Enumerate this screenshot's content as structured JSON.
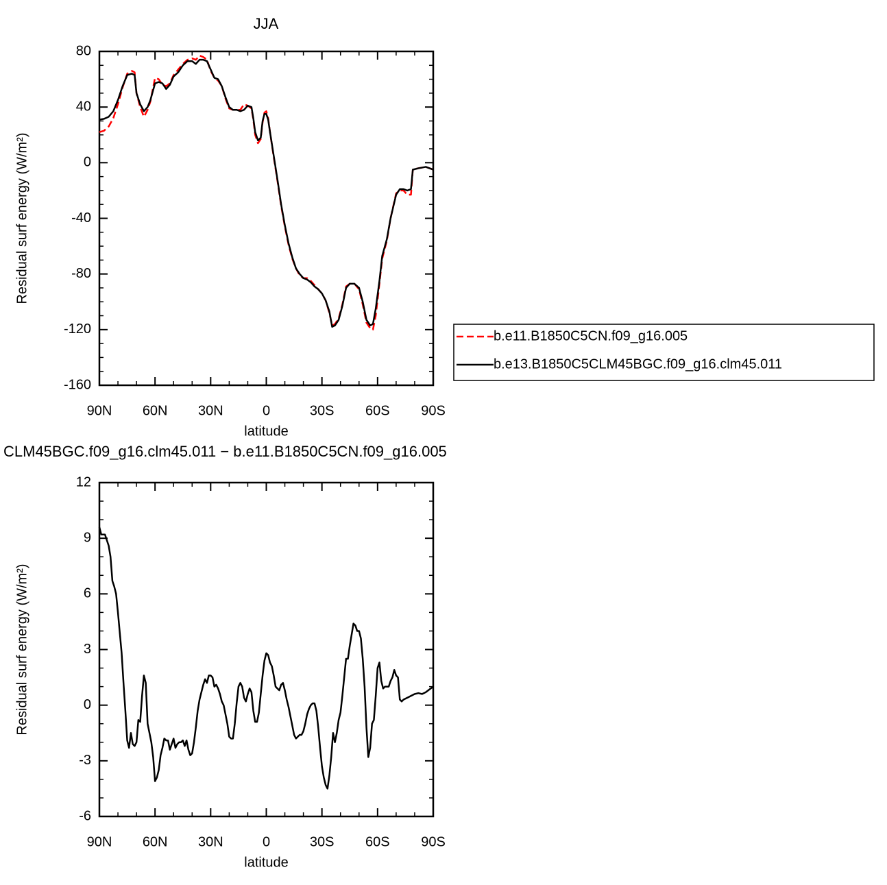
{
  "chart_data": [
    {
      "type": "line",
      "title": "JJA",
      "x_label": "latitude",
      "y_label": "Residual surf energy (W/m²)",
      "x": [
        90,
        87.5,
        85,
        82.5,
        80,
        77.5,
        75,
        72.5,
        71,
        70,
        68,
        66,
        64,
        62.5,
        60,
        58,
        56,
        54,
        52,
        50,
        47.5,
        45,
        42.5,
        40,
        38,
        36,
        34,
        32,
        30,
        28,
        26,
        24,
        22,
        20,
        18,
        16,
        14,
        12,
        10,
        8,
        7,
        6,
        4.5,
        3,
        2,
        1,
        0,
        -1,
        -2,
        -4,
        -6,
        -8,
        -10,
        -12,
        -14,
        -16,
        -18,
        -20,
        -22,
        -24,
        -26,
        -28,
        -30,
        -32,
        -34,
        -35.5,
        -37,
        -39,
        -41,
        -43,
        -45,
        -47.5,
        -50,
        -52,
        -54,
        -56,
        -57.5,
        -59,
        -61,
        -62.5,
        -65,
        -67,
        -70,
        -72,
        -74,
        -76,
        -78,
        -79,
        -82,
        -86,
        -90
      ],
      "series": [
        {
          "name": "b.e11.B1850C5CN.f09_g16.005",
          "color": "#ff0000",
          "dashed": true,
          "values": [
            22,
            23,
            26,
            32,
            42,
            54,
            64,
            66,
            65,
            50,
            40,
            33,
            38,
            44,
            61,
            60,
            56,
            55,
            57,
            63,
            67,
            71,
            74,
            75,
            74,
            77,
            76,
            74,
            66,
            61,
            59,
            55,
            46,
            39,
            38,
            38,
            38,
            42,
            41,
            39,
            31,
            20,
            14,
            17,
            29,
            36,
            37,
            32,
            22,
            4,
            -13,
            -31,
            -46,
            -59,
            -69,
            -76,
            -81,
            -83,
            -83,
            -85,
            -88,
            -91,
            -94,
            -99,
            -108,
            -117,
            -116,
            -112,
            -102,
            -89,
            -87,
            -87,
            -91,
            -102,
            -115,
            -119,
            -120,
            -110,
            -87,
            -69,
            -56,
            -40,
            -22,
            -20,
            -20,
            -23,
            -23,
            -5,
            -4,
            -3,
            -5
          ]
        },
        {
          "name": "b.e13.B1850C5CLM45BGC.f09_g16.clm45.011",
          "color": "#000000",
          "dashed": false,
          "values": [
            31,
            31.5,
            33,
            37,
            45,
            55,
            63,
            64,
            63,
            50,
            42,
            37,
            40,
            45,
            57,
            58,
            57,
            53,
            56,
            62,
            65,
            70,
            73,
            73,
            71,
            74,
            74,
            73,
            67,
            61,
            60,
            55,
            47,
            40,
            38,
            38,
            37,
            38,
            41,
            40,
            32,
            22,
            16,
            18,
            30,
            35,
            35,
            31,
            22,
            5,
            -12,
            -30,
            -45,
            -58,
            -68,
            -76,
            -80,
            -83,
            -84,
            -86,
            -89,
            -91,
            -94,
            -99,
            -107,
            -118,
            -117,
            -113,
            -103,
            -90,
            -87,
            -87,
            -90,
            -100,
            -113,
            -117,
            -116,
            -105,
            -85,
            -67,
            -55,
            -40,
            -23,
            -19,
            -19,
            -20,
            -19,
            -5,
            -4,
            -3,
            -5
          ]
        }
      ],
      "xlim": [
        90,
        -90
      ],
      "xticks": [
        {
          "value": 90,
          "label": "90N"
        },
        {
          "value": 60,
          "label": "60N"
        },
        {
          "value": 30,
          "label": "30N"
        },
        0,
        {
          "value": -30,
          "label": "30S"
        },
        {
          "value": -60,
          "label": "60S"
        },
        {
          "value": -90,
          "label": "90S"
        }
      ],
      "ylim": [
        -160,
        80
      ],
      "yticks": [
        80,
        40,
        0,
        -40,
        -80,
        -120,
        -160
      ],
      "grid": false,
      "legend": "right"
    },
    {
      "type": "line",
      "title": "CLM45BGC.f09_g16.clm45.011 − b.e11.B1850C5CN.f09_g16.005",
      "x_label": "latitude",
      "y_label": "Residual surf energy (W/m²)",
      "x": [
        90,
        89,
        87,
        85,
        84,
        83,
        82,
        81,
        80,
        79,
        78,
        77,
        76,
        75,
        74,
        73,
        72,
        71,
        70,
        69,
        68,
        67,
        66,
        65,
        64,
        63,
        62,
        61,
        60,
        59,
        58,
        57,
        56,
        55,
        54,
        53,
        52,
        51,
        50,
        49,
        48,
        47,
        46,
        45,
        44,
        43,
        42,
        41,
        40,
        39,
        38,
        37,
        36,
        35,
        34,
        33,
        32,
        31,
        30,
        29,
        28,
        27,
        26,
        25,
        24,
        23,
        22,
        21,
        20,
        19,
        18,
        17,
        16,
        15,
        14,
        13,
        12,
        11,
        10,
        9,
        8,
        7,
        6,
        5,
        4,
        3,
        2,
        1,
        0,
        -1,
        -2,
        -3,
        -4,
        -5,
        -6,
        -7,
        -8,
        -9,
        -10,
        -11,
        -12,
        -13,
        -14,
        -15,
        -16,
        -17,
        -18,
        -19,
        -20,
        -21,
        -22,
        -23,
        -24,
        -25,
        -26,
        -27,
        -28,
        -29,
        -30,
        -31,
        -32,
        -33,
        -34,
        -35,
        -36,
        -37,
        -38,
        -39,
        -40,
        -41,
        -42,
        -43,
        -44,
        -45,
        -46,
        -47,
        -48,
        -49,
        -50,
        -51,
        -52,
        -53,
        -54,
        -55,
        -56,
        -57,
        -58,
        -59,
        -60,
        -61,
        -62,
        -63,
        -64,
        -65,
        -66,
        -67,
        -68,
        -69,
        -70,
        -71,
        -72,
        -73,
        -74,
        -76,
        -78,
        -80,
        -82,
        -84,
        -86,
        -88,
        -90
      ],
      "series": [
        {
          "name": null,
          "color": "#000000",
          "dashed": false,
          "values": [
            9.6,
            9.2,
            9.2,
            8.6,
            8.0,
            6.7,
            6.4,
            6.0,
            5.0,
            3.9,
            2.8,
            1.2,
            -0.3,
            -1.9,
            -2.3,
            -1.5,
            -2.1,
            -2.2,
            -2.0,
            -0.8,
            -0.9,
            0.5,
            1.6,
            1.2,
            -1.0,
            -1.5,
            -2.0,
            -2.8,
            -4.1,
            -3.9,
            -3.5,
            -2.7,
            -2.3,
            -1.8,
            -1.9,
            -1.9,
            -2.4,
            -2.1,
            -1.8,
            -2.3,
            -2.1,
            -2.0,
            -2.0,
            -1.9,
            -2.2,
            -1.9,
            -2.4,
            -2.7,
            -2.6,
            -2.0,
            -1.2,
            -0.3,
            0.3,
            0.7,
            1.1,
            1.4,
            1.2,
            1.6,
            1.6,
            1.5,
            1.0,
            1.1,
            0.9,
            0.6,
            0.2,
            0.0,
            -0.5,
            -1.0,
            -1.7,
            -1.8,
            -1.8,
            -1.0,
            0.1,
            1.0,
            1.2,
            1.0,
            0.4,
            0.2,
            0.6,
            0.9,
            0.7,
            -0.3,
            -0.9,
            -0.9,
            -0.4,
            0.6,
            1.6,
            2.4,
            2.8,
            2.7,
            2.3,
            2.1,
            1.6,
            1.0,
            0.9,
            0.8,
            1.1,
            1.2,
            0.8,
            0.3,
            -0.1,
            -0.6,
            -1.1,
            -1.6,
            -1.8,
            -1.7,
            -1.6,
            -1.6,
            -1.4,
            -1.0,
            -0.5,
            -0.2,
            0.0,
            0.1,
            0.1,
            -0.3,
            -1.2,
            -2.3,
            -3.3,
            -3.9,
            -4.3,
            -4.5,
            -3.8,
            -2.8,
            -1.5,
            -2.0,
            -1.5,
            -0.8,
            -0.4,
            0.5,
            1.5,
            2.5,
            2.5,
            3.2,
            3.8,
            4.4,
            4.3,
            4.0,
            4.0,
            3.6,
            2.5,
            1.0,
            -1.2,
            -2.8,
            -2.3,
            -1.0,
            -0.8,
            0.5,
            2.0,
            2.3,
            1.3,
            0.9,
            1.0,
            1.0,
            1.0,
            1.3,
            1.5,
            1.9,
            1.6,
            1.5,
            0.3,
            0.2,
            0.3,
            0.4,
            0.5,
            0.6,
            0.65,
            0.6,
            0.7,
            0.85,
            1.0
          ]
        }
      ],
      "xlim": [
        90,
        -90
      ],
      "xticks": [
        {
          "value": 90,
          "label": "90N"
        },
        {
          "value": 60,
          "label": "60N"
        },
        {
          "value": 30,
          "label": "30N"
        },
        0,
        {
          "value": -30,
          "label": "30S"
        },
        {
          "value": -60,
          "label": "60S"
        },
        {
          "value": -90,
          "label": "90S"
        }
      ],
      "ylim": [
        -6,
        12
      ],
      "yticks": [
        12,
        9,
        6,
        3,
        0,
        -3,
        -6
      ],
      "grid": false
    }
  ]
}
